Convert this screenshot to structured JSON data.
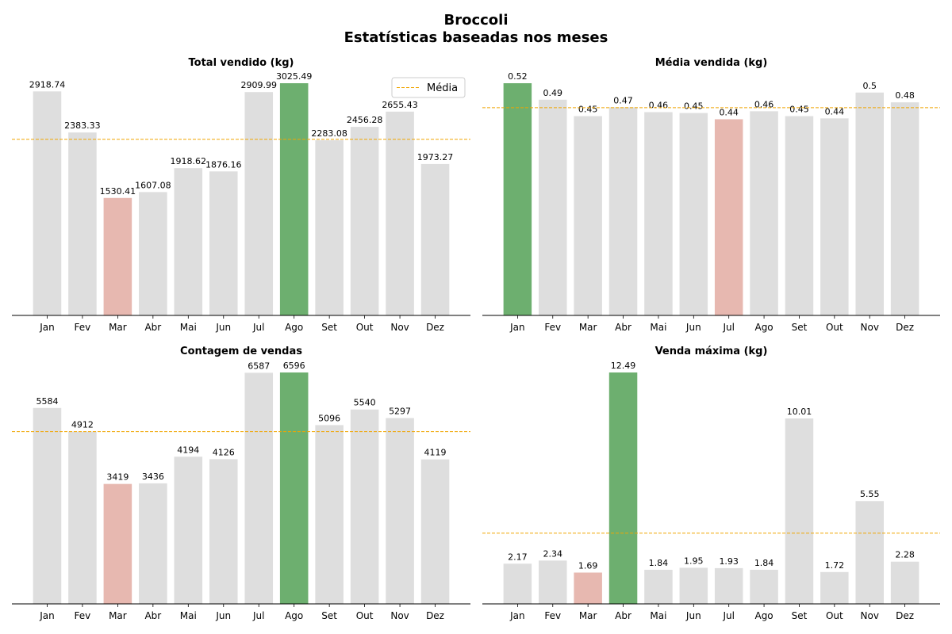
{
  "figure": {
    "title_line1": "Broccoli",
    "title_line2": "Estatísticas baseadas nos meses"
  },
  "colors": {
    "default_bar": "#dedede",
    "max_bar": "#6daf6f",
    "min_bar": "#e7b8b0",
    "mean_line": "#f0a500"
  },
  "legend": {
    "label": "Média",
    "placement": "upper-right of first chart"
  },
  "chart_data": [
    {
      "type": "bar",
      "title": "Total vendido (kg)",
      "categories": [
        "Jan",
        "Fev",
        "Mar",
        "Abr",
        "Mai",
        "Jun",
        "Jul",
        "Ago",
        "Set",
        "Out",
        "Nov",
        "Dez"
      ],
      "values": [
        2918.74,
        2383.33,
        1530.41,
        1607.08,
        1918.62,
        1876.16,
        2909.99,
        3025.49,
        2283.08,
        2456.28,
        2655.43,
        1973.27
      ],
      "labels": [
        "2918.74",
        "2383.33",
        "1530.41",
        "1607.08",
        "1918.62",
        "1876.16",
        "2909.99",
        "3025.49",
        "2283.08",
        "2456.28",
        "2655.43",
        "1973.27"
      ],
      "max_index": 7,
      "min_index": 2,
      "mean": 2294.83,
      "ylim": [
        0,
        3025.49
      ],
      "show_legend": true
    },
    {
      "type": "bar",
      "title": "Média vendida (kg)",
      "categories": [
        "Jan",
        "Fev",
        "Mar",
        "Abr",
        "Mai",
        "Jun",
        "Jul",
        "Ago",
        "Set",
        "Out",
        "Nov",
        "Dez"
      ],
      "values": [
        0.522,
        0.485,
        0.448,
        0.468,
        0.457,
        0.455,
        0.441,
        0.459,
        0.448,
        0.443,
        0.501,
        0.479
      ],
      "labels": [
        "0.52",
        "0.49",
        "0.45",
        "0.47",
        "0.46",
        "0.45",
        "0.44",
        "0.46",
        "0.45",
        "0.44",
        "0.5",
        "0.48"
      ],
      "max_index": 0,
      "min_index": 6,
      "mean": 0.467,
      "ylim": [
        0,
        0.522
      ],
      "show_legend": false
    },
    {
      "type": "bar",
      "title": "Contagem de vendas",
      "categories": [
        "Jan",
        "Fev",
        "Mar",
        "Abr",
        "Mai",
        "Jun",
        "Jul",
        "Ago",
        "Set",
        "Out",
        "Nov",
        "Dez"
      ],
      "values": [
        5584,
        4912,
        3419,
        3436,
        4194,
        4126,
        6587,
        6596,
        5096,
        5540,
        5297,
        4119
      ],
      "labels": [
        "5584",
        "4912",
        "3419",
        "3436",
        "4194",
        "4126",
        "6587",
        "6596",
        "5096",
        "5540",
        "5297",
        "4119"
      ],
      "max_index": 7,
      "min_index": 2,
      "mean": 4909,
      "ylim": [
        0,
        6596
      ],
      "show_legend": false
    },
    {
      "type": "bar",
      "title": "Venda máxima (kg)",
      "categories": [
        "Jan",
        "Fev",
        "Mar",
        "Abr",
        "Mai",
        "Jun",
        "Jul",
        "Ago",
        "Set",
        "Out",
        "Nov",
        "Dez"
      ],
      "values": [
        2.17,
        2.34,
        1.69,
        12.49,
        1.84,
        1.95,
        1.93,
        1.84,
        10.01,
        1.72,
        5.55,
        2.28
      ],
      "labels": [
        "2.17",
        "2.34",
        "1.69",
        "12.49",
        "1.84",
        "1.95",
        "1.93",
        "1.84",
        "10.01",
        "1.72",
        "5.55",
        "2.28"
      ],
      "max_index": 3,
      "min_index": 2,
      "mean": 3.82,
      "ylim": [
        0,
        12.49
      ],
      "show_legend": false
    }
  ]
}
